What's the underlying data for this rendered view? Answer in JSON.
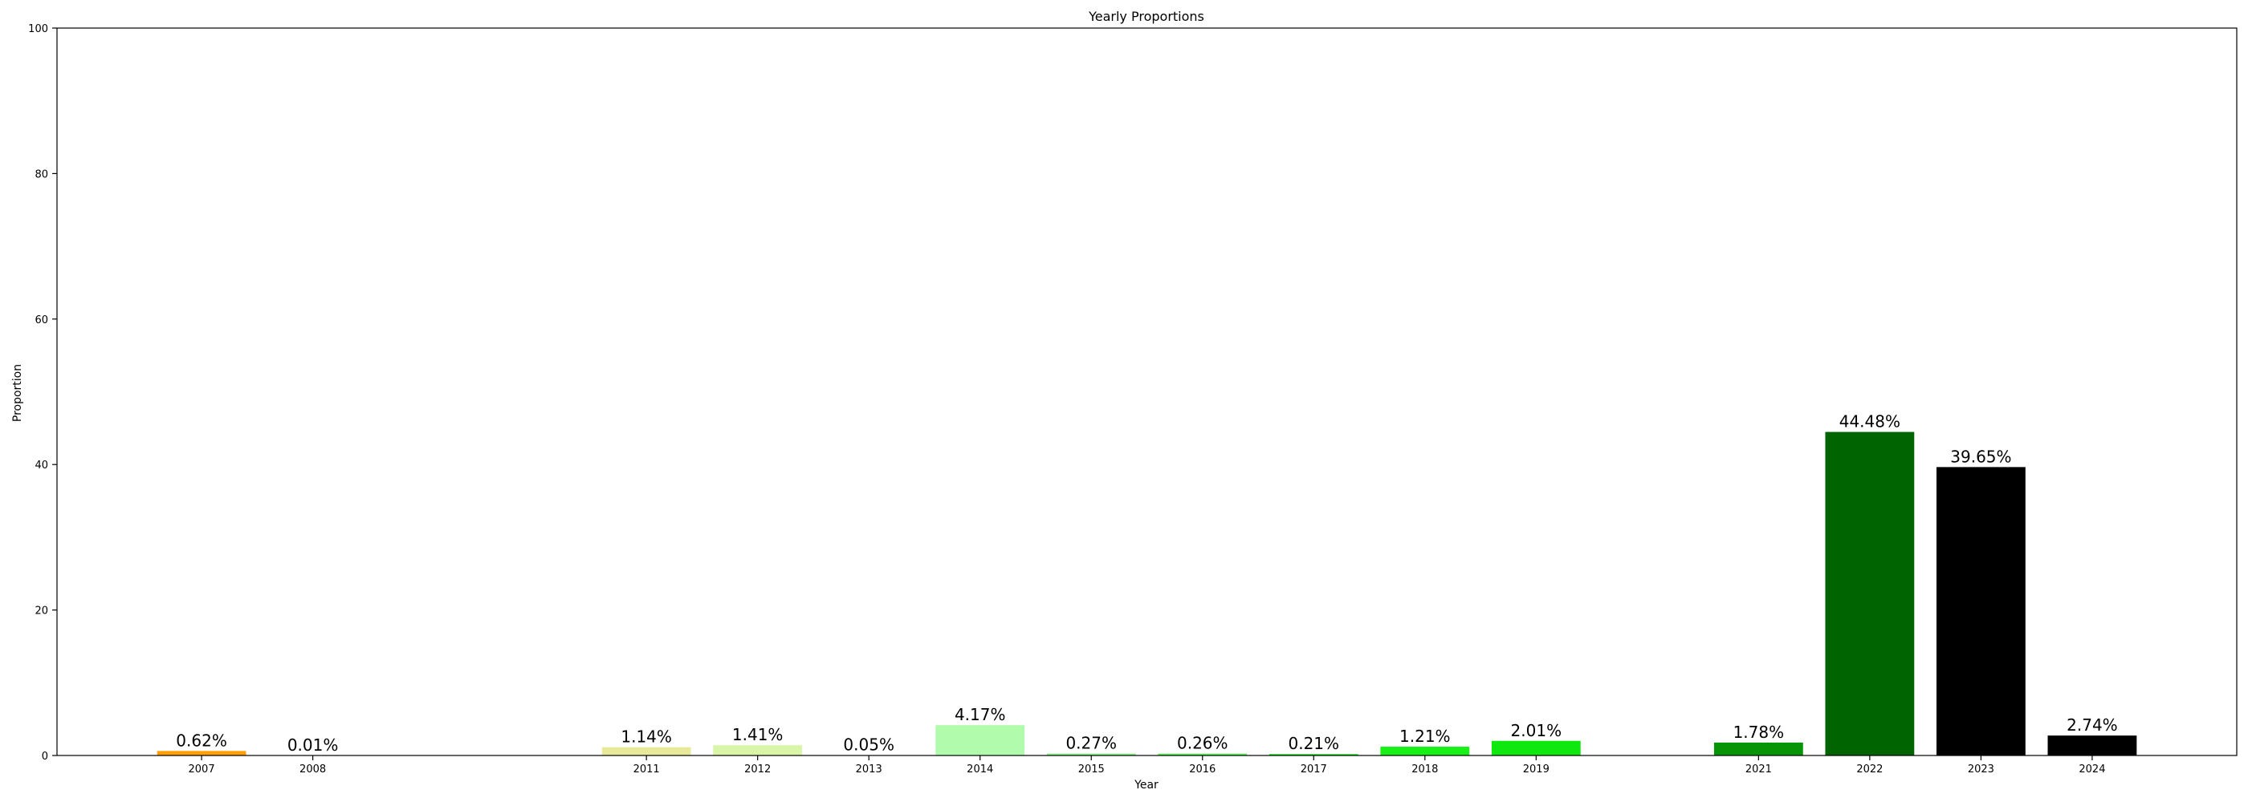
{
  "chart_data": {
    "type": "bar",
    "title": "Yearly Proportions",
    "xlabel": "Year",
    "ylabel": "Proportion",
    "ylim": [
      0,
      100
    ],
    "yticks": [
      0,
      20,
      40,
      60,
      80,
      100
    ],
    "xlim": [
      2005.7,
      2025.3
    ],
    "grid": false,
    "legend": "none",
    "bar_width": 0.8,
    "bars": [
      {
        "year": 2007,
        "label": "2007",
        "value": 0.62,
        "value_label": "0.62%",
        "color": "#ff9f00"
      },
      {
        "year": 2008,
        "label": "2008",
        "value": 0.01,
        "value_label": "0.01%",
        "color": "#ffbb55"
      },
      {
        "year": 2011,
        "label": "2011",
        "value": 1.14,
        "value_label": "1.14%",
        "color": "#e8ea9a"
      },
      {
        "year": 2012,
        "label": "2012",
        "value": 1.41,
        "value_label": "1.41%",
        "color": "#d8f5a8"
      },
      {
        "year": 2013,
        "label": "2013",
        "value": 0.05,
        "value_label": "0.05%",
        "color": "#c6f7b0"
      },
      {
        "year": 2014,
        "label": "2014",
        "value": 4.17,
        "value_label": "4.17%",
        "color": "#b0fcac"
      },
      {
        "year": 2015,
        "label": "2015",
        "value": 0.27,
        "value_label": "0.27%",
        "color": "#8cf28c"
      },
      {
        "year": 2016,
        "label": "2016",
        "value": 0.26,
        "value_label": "0.26%",
        "color": "#5ef05e"
      },
      {
        "year": 2017,
        "label": "2017",
        "value": 0.21,
        "value_label": "0.21%",
        "color": "#33ea33"
      },
      {
        "year": 2018,
        "label": "2018",
        "value": 1.21,
        "value_label": "1.21%",
        "color": "#18f018"
      },
      {
        "year": 2019,
        "label": "2019",
        "value": 2.01,
        "value_label": "2.01%",
        "color": "#0ee80e"
      },
      {
        "year": 2021,
        "label": "2021",
        "value": 1.78,
        "value_label": "1.78%",
        "color": "#079407"
      },
      {
        "year": 2022,
        "label": "2022",
        "value": 44.48,
        "value_label": "44.48%",
        "color": "#006400"
      },
      {
        "year": 2023,
        "label": "2023",
        "value": 39.65,
        "value_label": "39.65%",
        "color": "#000000"
      },
      {
        "year": 2024,
        "label": "2024",
        "value": 2.74,
        "value_label": "2.74%",
        "color": "#000000"
      }
    ]
  }
}
